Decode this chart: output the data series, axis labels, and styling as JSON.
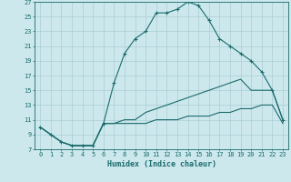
{
  "xlabel": "Humidex (Indice chaleur)",
  "background_color": "#cce8ed",
  "grid_color": "#aacdd4",
  "line_color": "#1a6b6b",
  "xlim": [
    -0.5,
    23.5
  ],
  "ylim": [
    7,
    27
  ],
  "xticks": [
    0,
    1,
    2,
    3,
    4,
    5,
    6,
    7,
    8,
    9,
    10,
    11,
    12,
    13,
    14,
    15,
    16,
    17,
    18,
    19,
    20,
    21,
    22,
    23
  ],
  "yticks": [
    7,
    9,
    11,
    13,
    15,
    17,
    19,
    21,
    23,
    25,
    27
  ],
  "line1_x": [
    0,
    1,
    2,
    3,
    4,
    5,
    6,
    7,
    8,
    9,
    10,
    11,
    12,
    13,
    14,
    15,
    16,
    17,
    18,
    19,
    20,
    21,
    22,
    23
  ],
  "line1_y": [
    10,
    9,
    8,
    7.5,
    7.5,
    7.5,
    10.5,
    16,
    20,
    22,
    23,
    25.5,
    25.5,
    26,
    27,
    26.5,
    24.5,
    22,
    21,
    20,
    19,
    17.5,
    15,
    11
  ],
  "line2_x": [
    0,
    1,
    2,
    3,
    4,
    5,
    6,
    7,
    8,
    9,
    10,
    11,
    12,
    13,
    14,
    15,
    16,
    17,
    18,
    19,
    20,
    21,
    22,
    23
  ],
  "line2_y": [
    10,
    9,
    8,
    7.5,
    7.5,
    7.5,
    10.5,
    10.5,
    11,
    11,
    12,
    12.5,
    13,
    13.5,
    14,
    14.5,
    15,
    15.5,
    16,
    16.5,
    15,
    15,
    15,
    11
  ],
  "line3_x": [
    0,
    1,
    2,
    3,
    4,
    5,
    6,
    7,
    8,
    9,
    10,
    11,
    12,
    13,
    14,
    15,
    16,
    17,
    18,
    19,
    20,
    21,
    22,
    23
  ],
  "line3_y": [
    10,
    9,
    8,
    7.5,
    7.5,
    7.5,
    10.5,
    10.5,
    10.5,
    10.5,
    10.5,
    11,
    11,
    11,
    11.5,
    11.5,
    11.5,
    12,
    12,
    12.5,
    12.5,
    13,
    13,
    10.5
  ]
}
